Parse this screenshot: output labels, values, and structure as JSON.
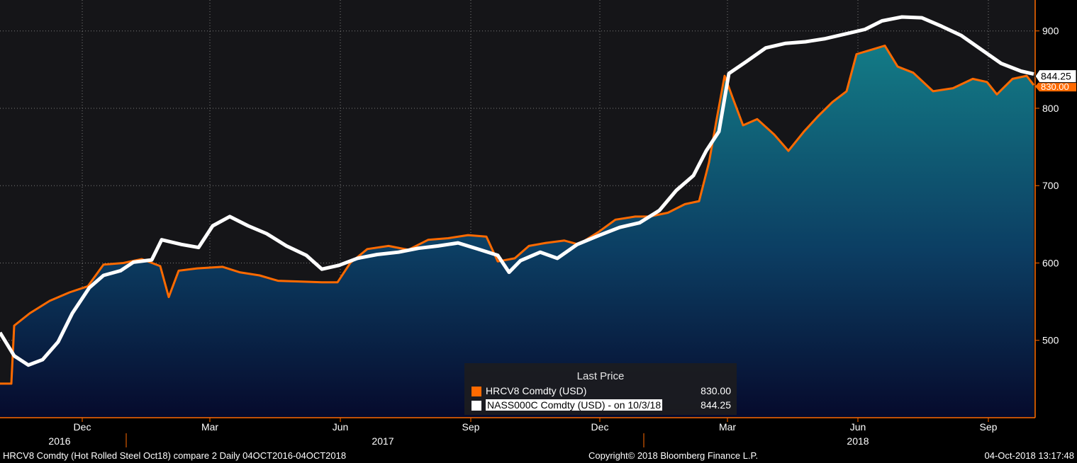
{
  "chart_data": {
    "type": "area",
    "y_range": [
      400,
      940
    ],
    "yticks": [
      500,
      600,
      700,
      800,
      900
    ],
    "month_ticks": [
      {
        "label": "Dec",
        "date": "2016-12-01"
      },
      {
        "label": "Mar",
        "date": "2017-03-01"
      },
      {
        "label": "Jun",
        "date": "2017-06-01"
      },
      {
        "label": "Sep",
        "date": "2017-09-01"
      },
      {
        "label": "Dec",
        "date": "2017-12-01"
      },
      {
        "label": "Mar",
        "date": "2018-03-01"
      },
      {
        "label": "Jun",
        "date": "2018-06-01"
      },
      {
        "label": "Sep",
        "date": "2018-09-01"
      }
    ],
    "year_labels": [
      {
        "label": "2016",
        "date": "2016-11-15"
      },
      {
        "label": "2017",
        "date": "2017-07-01"
      },
      {
        "label": "2018",
        "date": "2018-06-01"
      }
    ],
    "year_dividers": [
      "2017-01-01",
      "2018-01-01"
    ],
    "date_range": [
      "2016-10-04",
      "2018-10-04"
    ],
    "grid": true,
    "series": [
      {
        "name": "HRCV8 Comdty (USD)",
        "color": "#ff6a00",
        "style": "area",
        "last_value": "830.00",
        "points": [
          [
            "2016-10-04",
            444
          ],
          [
            "2016-10-12",
            444
          ],
          [
            "2016-10-14",
            519
          ],
          [
            "2016-10-25",
            535
          ],
          [
            "2016-11-08",
            551
          ],
          [
            "2016-11-22",
            562
          ],
          [
            "2016-12-05",
            570
          ],
          [
            "2016-12-16",
            598
          ],
          [
            "2016-12-30",
            600
          ],
          [
            "2017-01-12",
            605
          ],
          [
            "2017-01-25",
            596
          ],
          [
            "2017-01-31",
            556
          ],
          [
            "2017-02-07",
            590
          ],
          [
            "2017-02-20",
            593
          ],
          [
            "2017-03-10",
            595
          ],
          [
            "2017-03-22",
            588
          ],
          [
            "2017-04-05",
            584
          ],
          [
            "2017-04-18",
            577
          ],
          [
            "2017-05-05",
            576
          ],
          [
            "2017-05-19",
            575
          ],
          [
            "2017-05-30",
            575
          ],
          [
            "2017-06-08",
            600
          ],
          [
            "2017-06-20",
            618
          ],
          [
            "2017-07-05",
            622
          ],
          [
            "2017-07-19",
            617
          ],
          [
            "2017-08-02",
            630
          ],
          [
            "2017-08-16",
            632
          ],
          [
            "2017-08-30",
            636
          ],
          [
            "2017-09-12",
            634
          ],
          [
            "2017-09-20",
            602
          ],
          [
            "2017-10-02",
            606
          ],
          [
            "2017-10-12",
            622
          ],
          [
            "2017-10-24",
            626
          ],
          [
            "2017-11-06",
            629
          ],
          [
            "2017-11-16",
            624
          ],
          [
            "2017-11-30",
            640
          ],
          [
            "2017-12-12",
            656
          ],
          [
            "2017-12-26",
            660
          ],
          [
            "2018-01-05",
            660
          ],
          [
            "2018-01-18",
            665
          ],
          [
            "2018-01-30",
            676
          ],
          [
            "2018-02-09",
            680
          ],
          [
            "2018-02-16",
            730
          ],
          [
            "2018-02-21",
            782
          ],
          [
            "2018-02-27",
            842
          ],
          [
            "2018-03-05",
            812
          ],
          [
            "2018-03-12",
            778
          ],
          [
            "2018-03-22",
            786
          ],
          [
            "2018-04-03",
            766
          ],
          [
            "2018-04-13",
            745
          ],
          [
            "2018-04-24",
            770
          ],
          [
            "2018-05-04",
            790
          ],
          [
            "2018-05-14",
            808
          ],
          [
            "2018-05-24",
            822
          ],
          [
            "2018-05-31",
            870
          ],
          [
            "2018-06-11",
            876
          ],
          [
            "2018-06-20",
            881
          ],
          [
            "2018-06-29",
            854
          ],
          [
            "2018-07-10",
            846
          ],
          [
            "2018-07-24",
            822
          ],
          [
            "2018-08-07",
            826
          ],
          [
            "2018-08-21",
            838
          ],
          [
            "2018-08-31",
            834
          ],
          [
            "2018-09-07",
            818
          ],
          [
            "2018-09-18",
            838
          ],
          [
            "2018-09-28",
            842
          ],
          [
            "2018-10-03",
            830
          ]
        ]
      },
      {
        "name": "NASS000C Comdty (USD) -  on 10/3/18",
        "color": "#ffffff",
        "style": "line",
        "last_value": "844.25",
        "points": [
          [
            "2016-10-04",
            510
          ],
          [
            "2016-10-14",
            480
          ],
          [
            "2016-10-24",
            468
          ],
          [
            "2016-11-03",
            475
          ],
          [
            "2016-11-14",
            498
          ],
          [
            "2016-11-24",
            535
          ],
          [
            "2016-12-06",
            568
          ],
          [
            "2016-12-16",
            584
          ],
          [
            "2016-12-28",
            590
          ],
          [
            "2017-01-06",
            601
          ],
          [
            "2017-01-19",
            604
          ],
          [
            "2017-01-26",
            630
          ],
          [
            "2017-02-09",
            624
          ],
          [
            "2017-02-21",
            620
          ],
          [
            "2017-03-03",
            648
          ],
          [
            "2017-03-15",
            660
          ],
          [
            "2017-03-28",
            648
          ],
          [
            "2017-04-10",
            638
          ],
          [
            "2017-04-24",
            622
          ],
          [
            "2017-05-08",
            610
          ],
          [
            "2017-05-19",
            592
          ],
          [
            "2017-05-31",
            597
          ],
          [
            "2017-06-13",
            606
          ],
          [
            "2017-06-27",
            611
          ],
          [
            "2017-07-12",
            614
          ],
          [
            "2017-07-26",
            619
          ],
          [
            "2017-08-09",
            622
          ],
          [
            "2017-08-23",
            626
          ],
          [
            "2017-09-06",
            618
          ],
          [
            "2017-09-20",
            610
          ],
          [
            "2017-09-28",
            588
          ],
          [
            "2017-10-06",
            603
          ],
          [
            "2017-10-20",
            614
          ],
          [
            "2017-11-01",
            606
          ],
          [
            "2017-11-15",
            624
          ],
          [
            "2017-12-01",
            636
          ],
          [
            "2017-12-15",
            646
          ],
          [
            "2017-12-29",
            652
          ],
          [
            "2018-01-12",
            668
          ],
          [
            "2018-01-24",
            694
          ],
          [
            "2018-02-05",
            713
          ],
          [
            "2018-02-14",
            745
          ],
          [
            "2018-02-23",
            770
          ],
          [
            "2018-03-02",
            845
          ],
          [
            "2018-03-14",
            860
          ],
          [
            "2018-03-28",
            878
          ],
          [
            "2018-04-11",
            884
          ],
          [
            "2018-04-25",
            886
          ],
          [
            "2018-05-09",
            890
          ],
          [
            "2018-05-23",
            896
          ],
          [
            "2018-06-06",
            902
          ],
          [
            "2018-06-18",
            913
          ],
          [
            "2018-07-02",
            918
          ],
          [
            "2018-07-16",
            917
          ],
          [
            "2018-07-30",
            906
          ],
          [
            "2018-08-13",
            894
          ],
          [
            "2018-08-27",
            876
          ],
          [
            "2018-09-10",
            858
          ],
          [
            "2018-09-24",
            848
          ],
          [
            "2018-10-03",
            844.25
          ]
        ]
      }
    ]
  },
  "legend": {
    "title": "Last Price",
    "items": [
      {
        "name": "HRCV8 Comdty (USD)",
        "value": "830.00",
        "color": "#ff6a00"
      },
      {
        "name": "NASS000C Comdty (USD) -  on 10/3/18",
        "value": "844.25",
        "color": "#ffffff"
      }
    ]
  },
  "footer": {
    "left": "HRCV8 Comdty (Hot Rolled Steel  Oct18) compare 2  Daily 04OCT2016-04OCT2018",
    "center": "Copyright© 2018 Bloomberg Finance L.P.",
    "right": "04-Oct-2018 13:17:48"
  }
}
